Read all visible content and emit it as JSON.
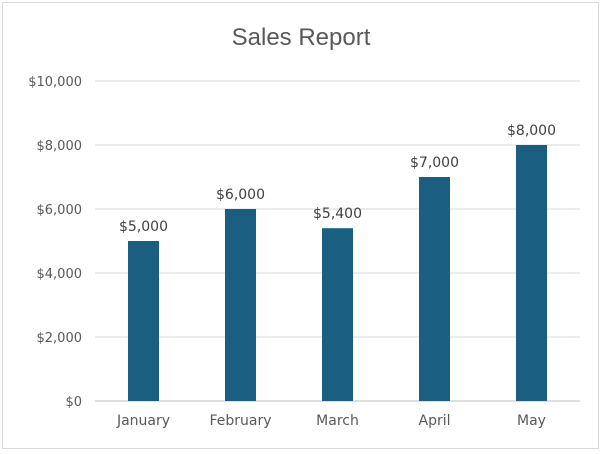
{
  "chart_data": {
    "type": "bar",
    "title": "Sales Report",
    "categories": [
      "January",
      "February",
      "March",
      "April",
      "May"
    ],
    "values": [
      5000,
      6000,
      5400,
      7000,
      8000
    ],
    "data_labels": [
      "$5,000",
      "$6,000",
      "$5,400",
      "$7,000",
      "$8,000"
    ],
    "yticks": [
      0,
      2000,
      4000,
      6000,
      8000,
      10000
    ],
    "ytick_labels": [
      "$0",
      "$2,000",
      "$4,000",
      "$6,000",
      "$8,000",
      "$10,000"
    ],
    "ylim": [
      0,
      10000
    ],
    "xlabel": "",
    "ylabel": "",
    "grid": true,
    "legend": "none",
    "bar_color": "#1a5e82"
  }
}
